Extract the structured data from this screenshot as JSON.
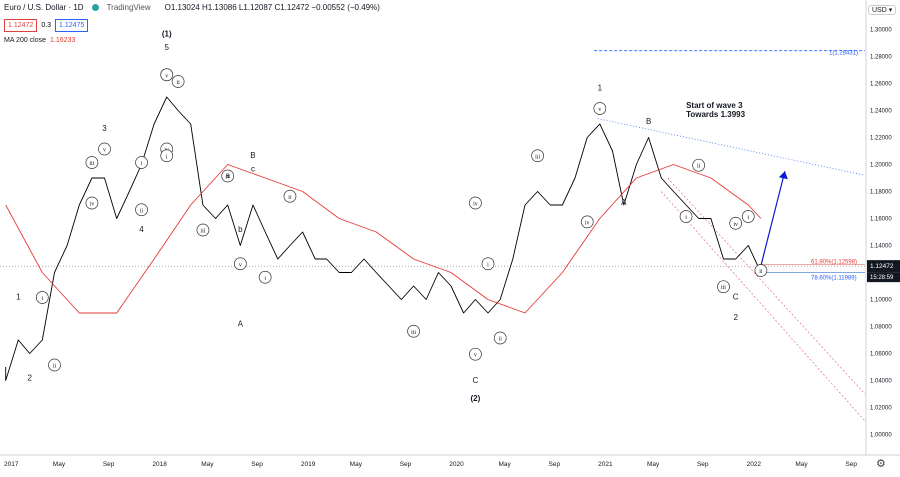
{
  "header": {
    "symbol": "Euro / U.S. Dollar · 1D",
    "brand": "TradingView",
    "ohlc": "O1.13024 H1.13086 L1.12087 C1.12472 −0.00552 (−0.49%)",
    "bid": "1.12472",
    "spread": "0.3",
    "ask": "1.12475",
    "ma_label": "MA 200 close",
    "ma_value": "1.16233",
    "currency": "USD"
  },
  "colors": {
    "price": "#000000",
    "ma": "#e53935",
    "channel": "#e57373",
    "trendline": "#2962ff",
    "arrow": "#0d1bd0"
  },
  "chart_data": {
    "type": "line",
    "series": [
      {
        "values": [
          [
            "2017-01",
            1.05
          ],
          [
            "2017-01",
            1.04
          ],
          [
            "2017-02",
            1.07
          ],
          [
            "2017-03",
            1.06
          ],
          [
            "2017-04",
            1.07
          ],
          [
            "2017-05",
            1.12
          ],
          [
            "2017-06",
            1.14
          ],
          [
            "2017-07",
            1.17
          ],
          [
            "2017-08",
            1.19
          ],
          [
            "2017-09",
            1.19
          ],
          [
            "2017-10",
            1.16
          ],
          [
            "2017-11",
            1.18
          ],
          [
            "2017-12",
            1.2
          ],
          [
            "2018-01",
            1.23
          ],
          [
            "2018-02",
            1.25
          ],
          [
            "2018-03",
            1.24
          ],
          [
            "2018-04",
            1.23
          ],
          [
            "2018-05",
            1.17
          ],
          [
            "2018-06",
            1.16
          ],
          [
            "2018-07",
            1.17
          ],
          [
            "2018-08",
            1.14
          ],
          [
            "2018-09",
            1.17
          ],
          [
            "2018-10",
            1.15
          ],
          [
            "2018-11",
            1.13
          ],
          [
            "2018-12",
            1.14
          ],
          [
            "2019-01",
            1.15
          ],
          [
            "2019-02",
            1.13
          ],
          [
            "2019-03",
            1.13
          ],
          [
            "2019-04",
            1.12
          ],
          [
            "2019-05",
            1.12
          ],
          [
            "2019-06",
            1.13
          ],
          [
            "2019-07",
            1.12
          ],
          [
            "2019-08",
            1.11
          ],
          [
            "2019-09",
            1.1
          ],
          [
            "2019-10",
            1.11
          ],
          [
            "2019-11",
            1.1
          ],
          [
            "2019-12",
            1.12
          ],
          [
            "2020-01",
            1.11
          ],
          [
            "2020-02",
            1.09
          ],
          [
            "2020-03",
            1.1
          ],
          [
            "2020-04",
            1.09
          ],
          [
            "2020-05",
            1.1
          ],
          [
            "2020-06",
            1.13
          ],
          [
            "2020-07",
            1.17
          ],
          [
            "2020-08",
            1.18
          ],
          [
            "2020-09",
            1.17
          ],
          [
            "2020-10",
            1.17
          ],
          [
            "2020-11",
            1.19
          ],
          [
            "2020-12",
            1.22
          ],
          [
            "2021-01",
            1.23
          ],
          [
            "2021-02",
            1.21
          ],
          [
            "2021-03",
            1.17
          ],
          [
            "2021-04",
            1.2
          ],
          [
            "2021-05",
            1.22
          ],
          [
            "2021-06",
            1.19
          ],
          [
            "2021-07",
            1.18
          ],
          [
            "2021-08",
            1.17
          ],
          [
            "2021-09",
            1.16
          ],
          [
            "2021-10",
            1.16
          ],
          [
            "2021-11",
            1.13
          ],
          [
            "2021-12",
            1.13
          ],
          [
            "2022-01",
            1.14
          ],
          [
            "2022-02",
            1.12
          ]
        ]
      },
      {
        "values": [
          [
            "2017-01",
            1.17
          ],
          [
            "2017-04",
            1.12
          ],
          [
            "2017-07",
            1.09
          ],
          [
            "2017-10",
            1.09
          ],
          [
            "2018-01",
            1.13
          ],
          [
            "2018-04",
            1.17
          ],
          [
            "2018-07",
            1.2
          ],
          [
            "2018-10",
            1.19
          ],
          [
            "2019-01",
            1.18
          ],
          [
            "2019-04",
            1.16
          ],
          [
            "2019-07",
            1.15
          ],
          [
            "2019-10",
            1.13
          ],
          [
            "2020-01",
            1.12
          ],
          [
            "2020-04",
            1.1
          ],
          [
            "2020-07",
            1.09
          ],
          [
            "2020-10",
            1.12
          ],
          [
            "2021-01",
            1.16
          ],
          [
            "2021-04",
            1.19
          ],
          [
            "2021-07",
            1.2
          ],
          [
            "2021-10",
            1.19
          ],
          [
            "2022-01",
            1.17
          ],
          [
            "2022-02",
            1.16
          ]
        ]
      }
    ],
    "y_ticks": [
      "1.30000",
      "1.28000",
      "1.26000",
      "1.24000",
      "1.22000",
      "1.20000",
      "1.18000",
      "1.16000",
      "1.14000",
      "1.12000",
      "1.10000",
      "1.08000",
      "1.06000",
      "1.04000",
      "1.02000",
      "1.00000"
    ],
    "x_ticks": [
      "2017",
      "May",
      "Sep",
      "2018",
      "May",
      "Sep",
      "2019",
      "May",
      "Sep",
      "2020",
      "May",
      "Sep",
      "2021",
      "May",
      "Sep",
      "2022",
      "May",
      "Sep"
    ],
    "ylim": [
      0.99,
      1.31
    ],
    "fib_levels": [
      {
        "label": "1(1.28431)",
        "value": 1.28431
      },
      {
        "label": "61.80%(1.12598)",
        "value": 1.12598
      },
      {
        "label": "78.60%(1.11989)",
        "value": 1.11989
      }
    ],
    "price_label": "1.12472",
    "countdown": "15:28:59",
    "annotation": [
      "Start of wave 3",
      "Towards 1.3993"
    ],
    "wave_labels": [
      {
        "t": "1",
        "d": "2017-02",
        "y": 1.1
      },
      {
        "t": "2",
        "d": "2017-03",
        "y": 1.04
      },
      {
        "t": "i",
        "d": "2017-04",
        "y": 1.1
      },
      {
        "t": "ii",
        "d": "2017-05",
        "y": 1.05
      },
      {
        "t": "3",
        "d": "2017-09",
        "y": 1.225
      },
      {
        "t": "iii",
        "d": "2017-08",
        "y": 1.2
      },
      {
        "t": "v",
        "d": "2017-09",
        "y": 1.21
      },
      {
        "t": "iv",
        "d": "2017-08",
        "y": 1.17
      },
      {
        "t": "4",
        "d": "2017-12",
        "y": 1.15
      },
      {
        "t": "i",
        "d": "2017-12",
        "y": 1.2
      },
      {
        "t": "ii",
        "d": "2017-12",
        "y": 1.165
      },
      {
        "t": "(1)",
        "d": "2018-02",
        "y": 1.295
      },
      {
        "t": "5",
        "d": "2018-02",
        "y": 1.285
      },
      {
        "t": "iii",
        "d": "2018-02",
        "y": 1.265
      },
      {
        "t": "v",
        "d": "2018-02",
        "y": 1.265
      },
      {
        "t": "ii",
        "d": "2018-03",
        "y": 1.26
      },
      {
        "t": "iv",
        "d": "2018-02",
        "y": 1.21
      },
      {
        "t": "i",
        "d": "2018-02",
        "y": 1.205
      },
      {
        "t": "B",
        "d": "2018-09",
        "y": 1.205
      },
      {
        "t": "iv",
        "d": "2018-07",
        "y": 1.19
      },
      {
        "t": "a",
        "d": "2018-07",
        "y": 1.19
      },
      {
        "t": "c",
        "d": "2018-09",
        "y": 1.195
      },
      {
        "t": "iii",
        "d": "2018-05",
        "y": 1.15
      },
      {
        "t": "b",
        "d": "2018-08",
        "y": 1.15
      },
      {
        "t": "v",
        "d": "2018-08",
        "y": 1.125
      },
      {
        "t": "i",
        "d": "2018-10",
        "y": 1.115
      },
      {
        "t": "ii",
        "d": "2018-12",
        "y": 1.175
      },
      {
        "t": "A",
        "d": "2018-08",
        "y": 1.08
      },
      {
        "t": "iii",
        "d": "2019-10",
        "y": 1.075
      },
      {
        "t": "iv",
        "d": "2020-03",
        "y": 1.17
      },
      {
        "t": "i",
        "d": "2020-04",
        "y": 1.125
      },
      {
        "t": "v",
        "d": "2020-03",
        "y": 1.058
      },
      {
        "t": "ii",
        "d": "2020-05",
        "y": 1.07
      },
      {
        "t": "C",
        "d": "2020-03",
        "y": 1.038
      },
      {
        "t": "(2)",
        "d": "2020-03",
        "y": 1.025
      },
      {
        "t": "iii",
        "d": "2020-08",
        "y": 1.205
      },
      {
        "t": "iv",
        "d": "2020-12",
        "y": 1.156
      },
      {
        "t": "1",
        "d": "2021-01",
        "y": 1.255
      },
      {
        "t": "v",
        "d": "2021-01",
        "y": 1.24
      },
      {
        "t": "B",
        "d": "2021-05",
        "y": 1.23
      },
      {
        "t": "A",
        "d": "2021-03",
        "y": 1.17
      },
      {
        "t": "ii",
        "d": "2021-09",
        "y": 1.198
      },
      {
        "t": "i",
        "d": "2021-08",
        "y": 1.16
      },
      {
        "t": "iii",
        "d": "2021-11",
        "y": 1.108
      },
      {
        "t": "iv",
        "d": "2021-12",
        "y": 1.155
      },
      {
        "t": "i",
        "d": "2022-01",
        "y": 1.16
      },
      {
        "t": "C",
        "d": "2021-12",
        "y": 1.1
      },
      {
        "t": "2",
        "d": "2021-12",
        "y": 1.085
      },
      {
        "t": "ii",
        "d": "2022-02",
        "y": 1.12
      }
    ]
  }
}
